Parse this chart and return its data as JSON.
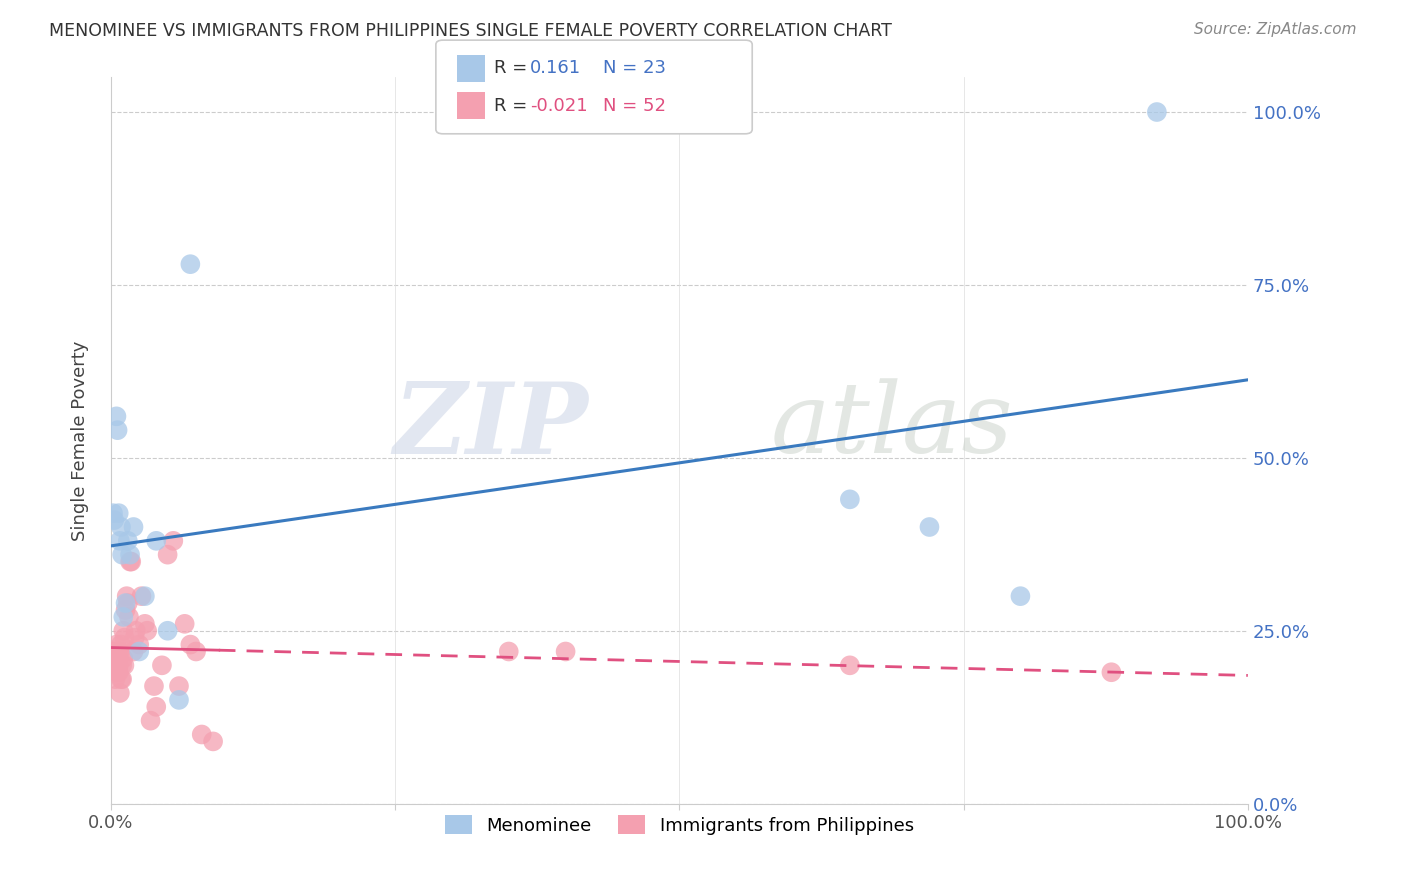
{
  "title": "MENOMINEE VS IMMIGRANTS FROM PHILIPPINES SINGLE FEMALE POVERTY CORRELATION CHART",
  "source": "Source: ZipAtlas.com",
  "ylabel": "Single Female Poverty",
  "legend_label1": "Menominee",
  "legend_label2": "Immigrants from Philippines",
  "r1": 0.161,
  "n1": 23,
  "r2": -0.021,
  "n2": 52,
  "color1": "#a8c8e8",
  "color2": "#f4a0b0",
  "trendline1_color": "#3a7abf",
  "trendline2_color": "#e05080",
  "background_color": "#ffffff",
  "watermark_zip": "ZIP",
  "watermark_atlas": "atlas",
  "xlim": [
    0,
    1.0
  ],
  "ylim": [
    0,
    1.05
  ],
  "menominee_x": [
    0.002,
    0.003,
    0.005,
    0.006,
    0.007,
    0.008,
    0.009,
    0.01,
    0.011,
    0.013,
    0.015,
    0.017,
    0.02,
    0.025,
    0.03,
    0.04,
    0.05,
    0.06,
    0.07,
    0.65,
    0.72,
    0.8,
    0.92
  ],
  "menominee_y": [
    0.42,
    0.41,
    0.56,
    0.54,
    0.42,
    0.38,
    0.4,
    0.36,
    0.27,
    0.29,
    0.38,
    0.36,
    0.4,
    0.22,
    0.3,
    0.38,
    0.25,
    0.15,
    0.78,
    0.44,
    0.4,
    0.3,
    1.0
  ],
  "philippines_x": [
    0.001,
    0.002,
    0.003,
    0.003,
    0.004,
    0.004,
    0.005,
    0.005,
    0.006,
    0.006,
    0.007,
    0.007,
    0.007,
    0.008,
    0.008,
    0.009,
    0.009,
    0.01,
    0.01,
    0.011,
    0.011,
    0.012,
    0.012,
    0.013,
    0.014,
    0.015,
    0.016,
    0.017,
    0.018,
    0.02,
    0.021,
    0.022,
    0.025,
    0.027,
    0.03,
    0.032,
    0.035,
    0.038,
    0.04,
    0.045,
    0.05,
    0.055,
    0.06,
    0.065,
    0.07,
    0.075,
    0.08,
    0.09,
    0.35,
    0.4,
    0.65,
    0.88
  ],
  "philippines_y": [
    0.22,
    0.2,
    0.22,
    0.2,
    0.2,
    0.18,
    0.23,
    0.21,
    0.19,
    0.22,
    0.19,
    0.21,
    0.2,
    0.16,
    0.22,
    0.18,
    0.23,
    0.18,
    0.2,
    0.21,
    0.25,
    0.2,
    0.24,
    0.28,
    0.3,
    0.29,
    0.27,
    0.35,
    0.35,
    0.22,
    0.24,
    0.25,
    0.23,
    0.3,
    0.26,
    0.25,
    0.12,
    0.17,
    0.14,
    0.2,
    0.36,
    0.38,
    0.17,
    0.26,
    0.23,
    0.22,
    0.1,
    0.09,
    0.22,
    0.22,
    0.2,
    0.19
  ],
  "ytick_values": [
    0.0,
    0.25,
    0.5,
    0.75,
    1.0
  ],
  "ytick_labels": [
    "0.0%",
    "25.0%",
    "50.0%",
    "75.0%",
    "100.0%"
  ],
  "xtick_values": [
    0.0,
    0.25,
    0.5,
    0.75,
    1.0
  ],
  "xtick_show": [
    "0.0%",
    "",
    "",
    "",
    "100.0%"
  ]
}
